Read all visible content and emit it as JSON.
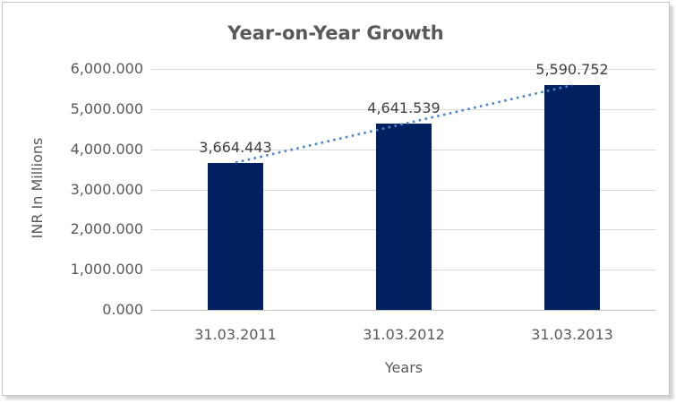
{
  "chart_data": {
    "type": "bar",
    "title": "Year-on-Year Growth",
    "categories": [
      "31.03.2011",
      "31.03.2012",
      "31.03.2013"
    ],
    "values": [
      3664.443,
      4641.539,
      5590.752
    ],
    "data_labels": [
      "3,664.443",
      "4,641.539",
      "5,590.752"
    ],
    "xlabel": "Years",
    "ylabel": "INR In Millions",
    "ylim": [
      0,
      6000
    ],
    "ytick_interval": 1000,
    "ytick_labels": [
      "0.000",
      "1,000.000",
      "2,000.000",
      "3,000.000",
      "4,000.000",
      "5,000.000",
      "6,000.000"
    ],
    "grid": true,
    "legend": "none",
    "bar_color": "#002060",
    "trendline": {
      "type": "linear",
      "style": "dotted",
      "color": "#4A86C8"
    },
    "colors": {
      "title_text": "#595959",
      "axis_text": "#595959",
      "data_label_text": "#3F3F3F",
      "gridline": "#D9D9D9",
      "axis_line": "#BFBFBF",
      "frame_border": "#C6C6C6"
    }
  }
}
